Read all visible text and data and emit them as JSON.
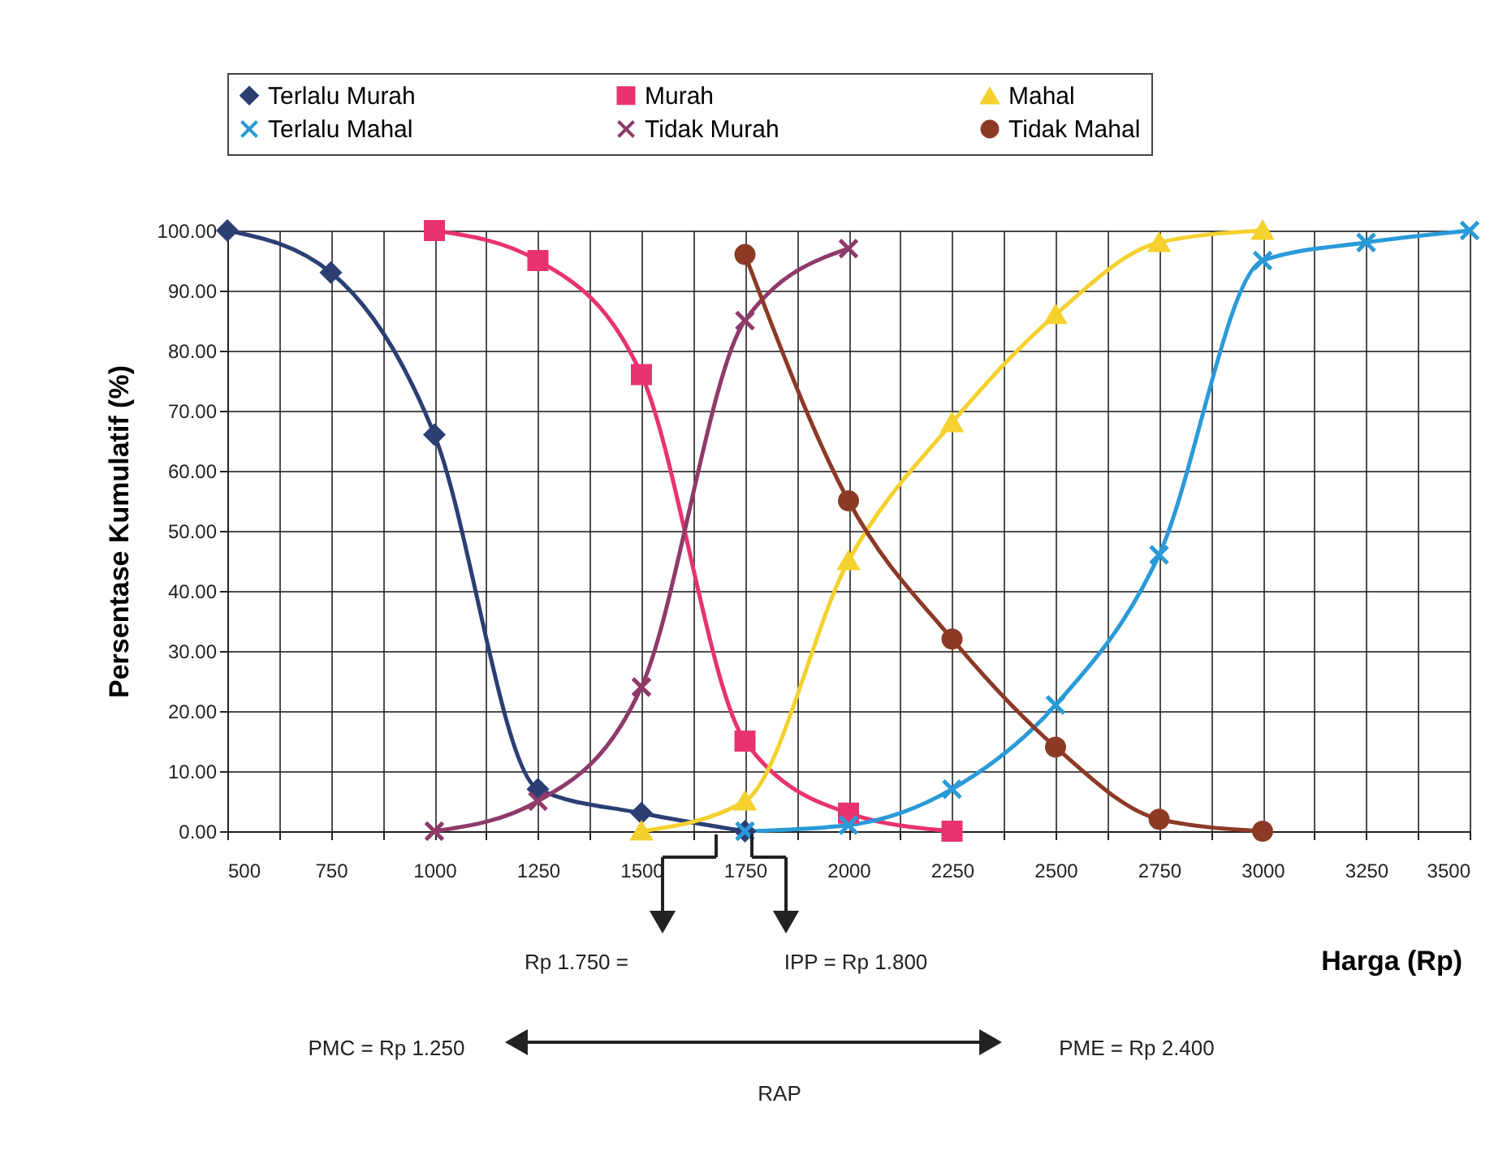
{
  "chart_data": {
    "type": "line",
    "xlabel": "Harga (Rp)",
    "ylabel": "Persentase Kumulatif (%)",
    "xlim": [
      500,
      3500
    ],
    "xticks": [
      500,
      {
        "value": 625,
        "label": null
      },
      750,
      {
        "value": 875,
        "label": null
      },
      1000,
      {
        "value": 1125,
        "label": null
      },
      1250,
      {
        "value": 1375,
        "label": null
      },
      1500,
      {
        "value": 1625,
        "label": null
      },
      1750,
      {
        "value": 1875,
        "label": null
      },
      2000,
      {
        "value": 2125,
        "label": null
      },
      2250,
      {
        "value": 2375,
        "label": null
      },
      2500,
      {
        "value": 2625,
        "label": null
      },
      2750,
      {
        "value": 2875,
        "label": null
      },
      3000,
      {
        "value": 3125,
        "label": null
      },
      3250,
      {
        "value": 3375,
        "label": null
      },
      3500
    ],
    "ylim": [
      0,
      100
    ],
    "yticks": [
      {
        "value": 0,
        "label": "0.00"
      },
      {
        "value": 10,
        "label": "10.00"
      },
      {
        "value": 20,
        "label": "20.00"
      },
      {
        "value": 30,
        "label": "30.00"
      },
      {
        "value": 40,
        "label": "40.00"
      },
      {
        "value": 50,
        "label": "50.00"
      },
      {
        "value": 60,
        "label": "60.00"
      },
      {
        "value": 70,
        "label": "70.00"
      },
      {
        "value": 80,
        "label": "80.00"
      },
      {
        "value": 90,
        "label": "90.00"
      },
      {
        "value": 100,
        "label": "100.00"
      }
    ],
    "grid": true,
    "legend": "top",
    "line_style": "solid",
    "series": [
      {
        "name": "Terlalu Murah",
        "color": "#2b3f73",
        "marker": "diamond",
        "x": [
          500,
          750,
          1000,
          1250,
          1500,
          1750
        ],
        "values": [
          100,
          93,
          66,
          7,
          3,
          0
        ]
      },
      {
        "name": "Murah",
        "color": "#e8336f",
        "marker": "square",
        "x": [
          1000,
          1250,
          1500,
          1750,
          2000,
          2250
        ],
        "values": [
          100,
          95,
          76,
          15,
          3,
          0
        ]
      },
      {
        "name": "Mahal",
        "color": "#f5d130",
        "marker": "triangle",
        "x": [
          1500,
          1750,
          2000,
          2250,
          2500,
          2750,
          3000
        ],
        "values": [
          0,
          5,
          45,
          68,
          86,
          98,
          100
        ]
      },
      {
        "name": "Terlalu Mahal",
        "color": "#2a9ad8",
        "marker": "cross",
        "x": [
          1750,
          2000,
          2250,
          2500,
          2750,
          3000,
          3250,
          3500
        ],
        "values": [
          0,
          1,
          7,
          21,
          46,
          95,
          98,
          100
        ]
      },
      {
        "name": "Tidak Murah",
        "color": "#8e3a6a",
        "marker": "cross",
        "x": [
          1000,
          1250,
          1500,
          1750,
          2000
        ],
        "values": [
          0,
          5,
          24,
          85,
          97
        ]
      },
      {
        "name": "Tidak Mahal",
        "color": "#8c3a26",
        "marker": "circle",
        "x": [
          1750,
          2000,
          2250,
          2500,
          2750,
          3000
        ],
        "values": [
          96,
          55,
          32,
          14,
          2,
          0
        ]
      }
    ],
    "annotations": [
      "Rp 1.750 =",
      "IPP = Rp 1.800",
      "PMC = Rp 1.250",
      "PME = Rp 2.400",
      "RAP"
    ]
  }
}
